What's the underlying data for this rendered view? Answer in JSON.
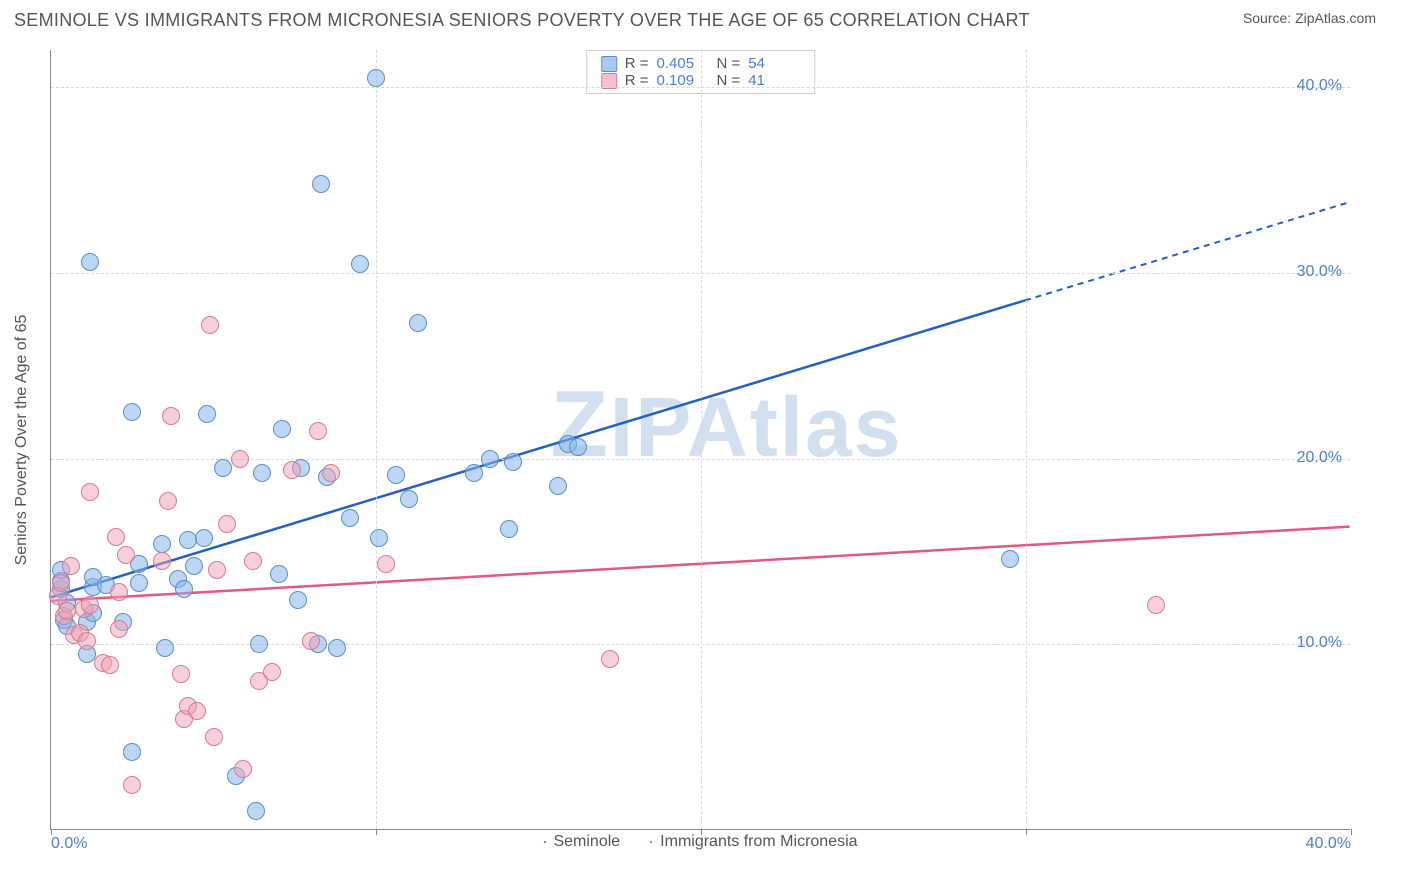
{
  "header": {
    "title": "SEMINOLE VS IMMIGRANTS FROM MICRONESIA SENIORS POVERTY OVER THE AGE OF 65 CORRELATION CHART",
    "source_prefix": "Source: ",
    "source_name": "ZipAtlas.com"
  },
  "watermark": {
    "z": "Z",
    "rest": "IPAtlas"
  },
  "chart": {
    "type": "scatter",
    "ylabel": "Seniors Poverty Over the Age of 65",
    "xlim": [
      0,
      40
    ],
    "ylim": [
      0,
      42
    ],
    "x_ticks": [
      0,
      10,
      20,
      30,
      40
    ],
    "y_ticks": [
      10,
      20,
      30,
      40
    ],
    "x_tick_labels": [
      "0.0%",
      "",
      "",
      "",
      "40.0%"
    ],
    "y_tick_labels": [
      "10.0%",
      "20.0%",
      "30.0%",
      "40.0%"
    ],
    "grid_color": "#d8d8d8",
    "axis_color": "#888888",
    "background_color": "#ffffff",
    "series": [
      {
        "name": "Seminole",
        "color_fill": "rgba(135,180,235,0.55)",
        "color_stroke": "#5a8fc9",
        "line_color": "#2360c4",
        "reg_start": [
          0,
          12.5
        ],
        "reg_solid_end": [
          30,
          28.5
        ],
        "reg_dash_end": [
          40,
          33.8
        ],
        "r": "0.405",
        "n": "54",
        "points": [
          [
            0.3,
            13.0
          ],
          [
            0.3,
            13.4
          ],
          [
            0.3,
            14.0
          ],
          [
            0.4,
            11.3
          ],
          [
            0.5,
            12.2
          ],
          [
            0.5,
            11.0
          ],
          [
            1.2,
            30.6
          ],
          [
            1.1,
            11.2
          ],
          [
            1.1,
            9.5
          ],
          [
            1.3,
            11.7
          ],
          [
            1.3,
            13.1
          ],
          [
            1.3,
            13.6
          ],
          [
            1.7,
            13.2
          ],
          [
            2.2,
            11.2
          ],
          [
            2.5,
            4.2
          ],
          [
            2.5,
            22.5
          ],
          [
            2.7,
            13.3
          ],
          [
            2.7,
            14.3
          ],
          [
            3.4,
            15.4
          ],
          [
            3.5,
            9.8
          ],
          [
            3.9,
            13.5
          ],
          [
            4.1,
            13.0
          ],
          [
            4.2,
            15.6
          ],
          [
            4.4,
            14.2
          ],
          [
            4.7,
            15.7
          ],
          [
            4.8,
            22.4
          ],
          [
            5.3,
            19.5
          ],
          [
            5.7,
            2.9
          ],
          [
            6.3,
            1.0
          ],
          [
            6.4,
            10.0
          ],
          [
            6.5,
            19.2
          ],
          [
            7.0,
            13.8
          ],
          [
            7.1,
            21.6
          ],
          [
            7.6,
            12.4
          ],
          [
            7.7,
            19.5
          ],
          [
            8.2,
            10.0
          ],
          [
            8.3,
            34.8
          ],
          [
            8.5,
            19.0
          ],
          [
            8.8,
            9.8
          ],
          [
            9.2,
            16.8
          ],
          [
            9.5,
            30.5
          ],
          [
            10.0,
            40.5
          ],
          [
            10.1,
            15.7
          ],
          [
            10.6,
            19.1
          ],
          [
            11.0,
            17.8
          ],
          [
            11.3,
            27.3
          ],
          [
            13.0,
            19.2
          ],
          [
            13.5,
            20.0
          ],
          [
            14.1,
            16.2
          ],
          [
            14.2,
            19.8
          ],
          [
            15.6,
            18.5
          ],
          [
            15.9,
            20.8
          ],
          [
            16.2,
            20.6
          ],
          [
            29.5,
            14.6
          ]
        ]
      },
      {
        "name": "Immigrants from Micronesia",
        "color_fill": "rgba(240,160,180,0.5)",
        "color_stroke": "#d87a96",
        "line_color": "#e05a80",
        "reg_start": [
          0,
          12.3
        ],
        "reg_solid_end": [
          40,
          16.3
        ],
        "reg_dash_end": null,
        "r": "0.109",
        "n": "41",
        "points": [
          [
            0.2,
            12.6
          ],
          [
            0.3,
            13.3
          ],
          [
            0.4,
            11.5
          ],
          [
            0.5,
            11.8
          ],
          [
            0.6,
            14.2
          ],
          [
            0.7,
            10.5
          ],
          [
            0.9,
            10.6
          ],
          [
            1.0,
            11.9
          ],
          [
            1.1,
            10.2
          ],
          [
            1.2,
            12.1
          ],
          [
            1.2,
            18.2
          ],
          [
            1.6,
            9.0
          ],
          [
            1.8,
            8.9
          ],
          [
            2.0,
            15.8
          ],
          [
            2.1,
            10.8
          ],
          [
            2.1,
            12.8
          ],
          [
            2.3,
            14.8
          ],
          [
            2.5,
            2.4
          ],
          [
            3.4,
            14.5
          ],
          [
            3.6,
            17.7
          ],
          [
            3.7,
            22.3
          ],
          [
            4.0,
            8.4
          ],
          [
            4.1,
            6.0
          ],
          [
            4.2,
            6.7
          ],
          [
            4.5,
            6.4
          ],
          [
            4.9,
            27.2
          ],
          [
            5.0,
            5.0
          ],
          [
            5.1,
            14.0
          ],
          [
            5.4,
            16.5
          ],
          [
            5.8,
            20.0
          ],
          [
            5.9,
            3.3
          ],
          [
            6.2,
            14.5
          ],
          [
            6.4,
            8.0
          ],
          [
            6.8,
            8.5
          ],
          [
            7.4,
            19.4
          ],
          [
            8.0,
            10.2
          ],
          [
            8.2,
            21.5
          ],
          [
            8.6,
            19.2
          ],
          [
            10.3,
            14.3
          ],
          [
            17.2,
            9.2
          ],
          [
            34.0,
            12.1
          ]
        ]
      }
    ],
    "legend_top": {
      "r_label": "R =",
      "n_label": "N ="
    },
    "legend_bottom": {
      "items": [
        "Seminole",
        "Immigrants from Micronesia"
      ]
    }
  }
}
